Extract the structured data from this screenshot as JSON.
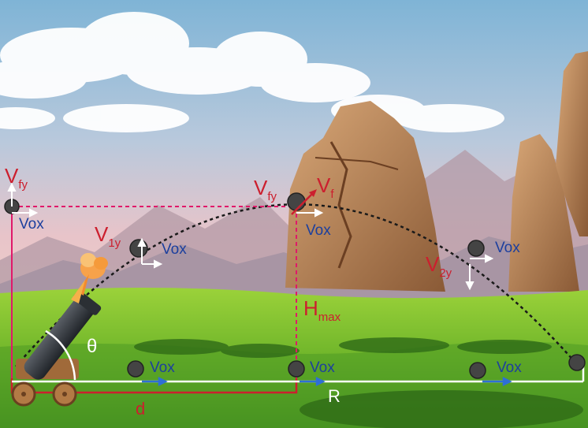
{
  "labels": {
    "vfy_left": {
      "main": "V",
      "sub": "fy"
    },
    "vfy_top": {
      "main": "V",
      "sub": "fy"
    },
    "vf_top": {
      "main": "V",
      "sub": "f"
    },
    "v1y": {
      "main": "V",
      "sub": "1y"
    },
    "v2y": {
      "main": "V",
      "sub": "2y"
    },
    "hmax": {
      "main": "H",
      "sub": "max"
    },
    "vox": "Vox",
    "theta": "θ",
    "d": "d",
    "R": "R"
  },
  "colors": {
    "label_red": "#cc1f2e",
    "label_blue": "#1c3f9e",
    "guide_magenta": "#e0196a",
    "arrow_white": "#ffffff",
    "arrow_blue": "#2f6fd6",
    "trajectory": "#1a1a1a",
    "ball": "#444444"
  },
  "icons": [
    "cannon-icon",
    "cannonball-icon",
    "rock-formation-icon",
    "cloud-icon"
  ]
}
